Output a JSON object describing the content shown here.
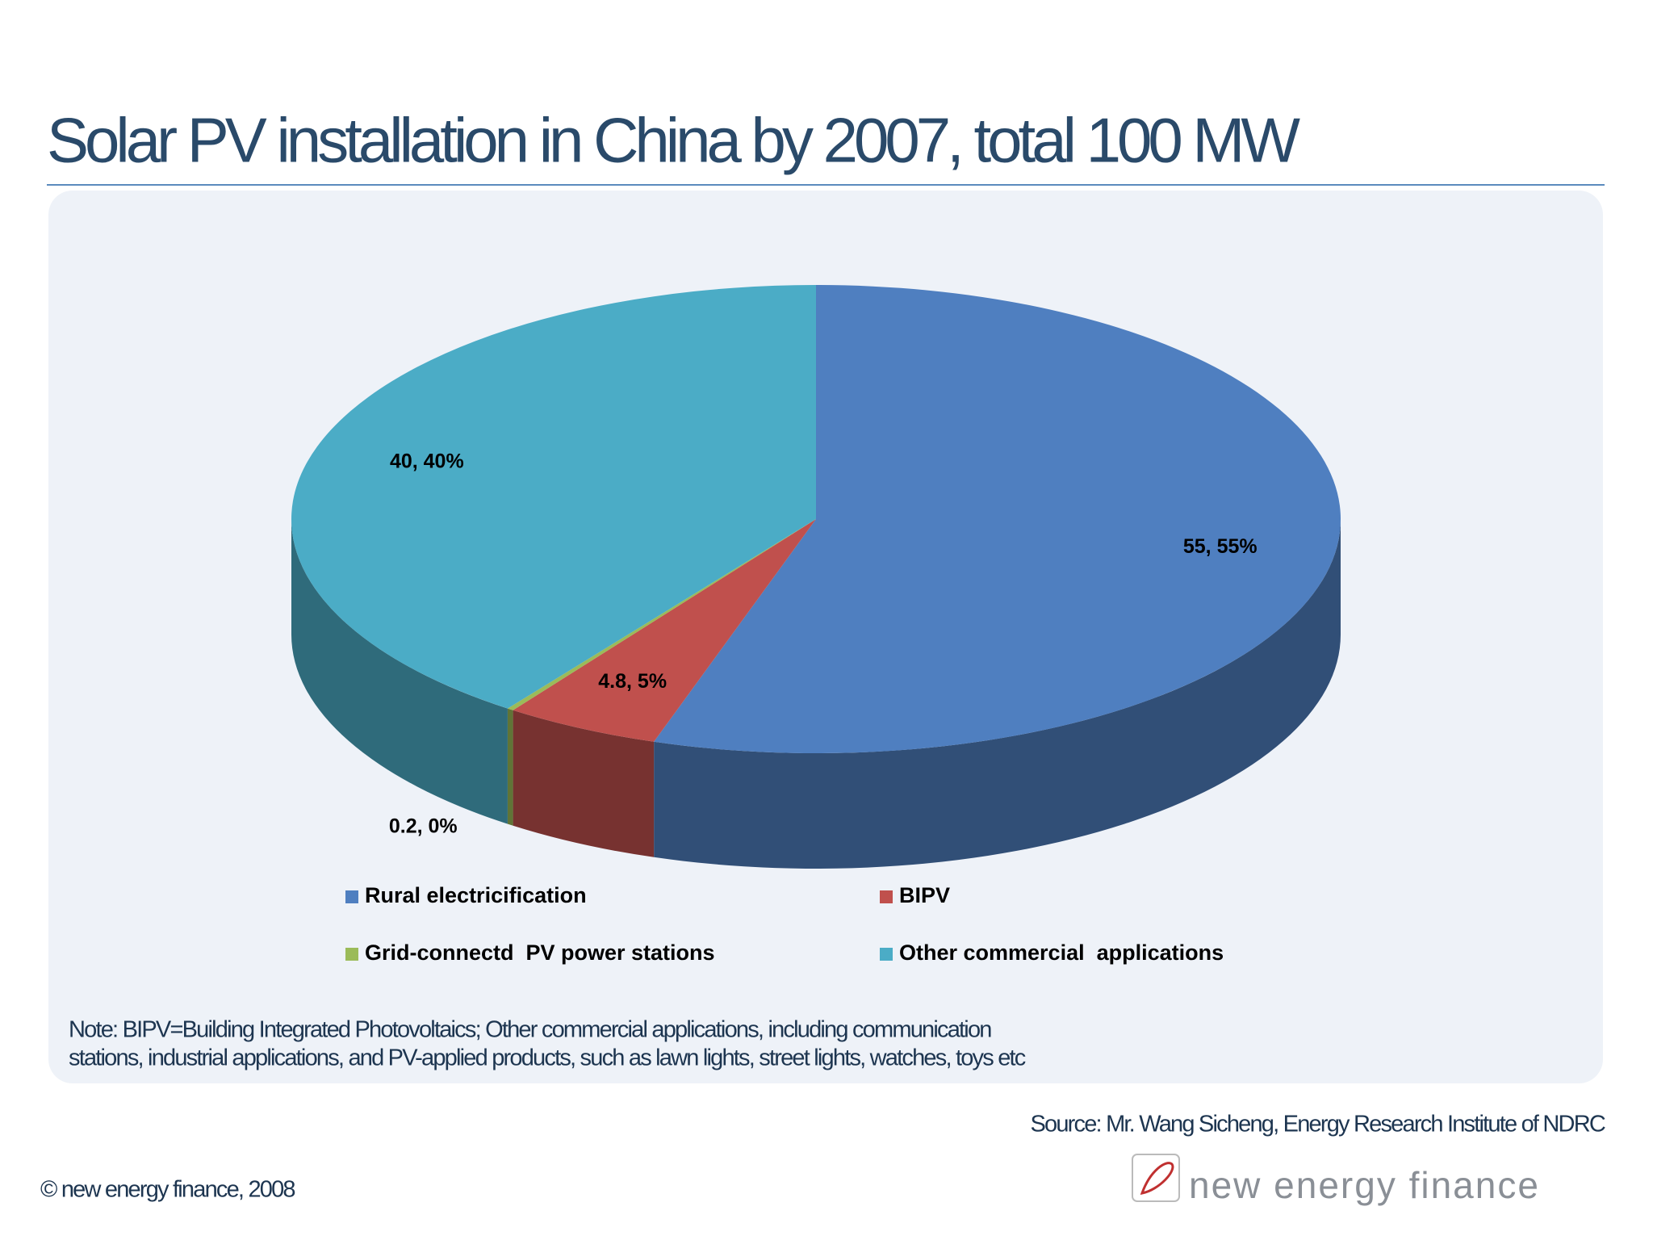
{
  "title": "Solar PV installation in China by 2007, total 100 MW",
  "chart_data": {
    "type": "pie",
    "categories": [
      "Rural electricification",
      "BIPV",
      "Grid-connectd  PV power stations",
      "Other commercial  applications"
    ],
    "values": [
      55,
      4.8,
      0.2,
      40
    ],
    "value_labels": [
      "55, 55%",
      "4.8, 5%",
      "0.2, 0%",
      "40, 40%"
    ],
    "colors": [
      "#4f7fc0",
      "#c0504d",
      "#9bbb59",
      "#4bacc6"
    ]
  },
  "note": [
    "Note: BIPV=Building Integrated Photovoltaics; Other commercial applications, including communication",
    "stations, industrial applications, and PV-applied products, such as lawn lights, street lights, watches, toys etc"
  ],
  "source": "Source: Mr. Wang Sicheng, Energy Research Institute of NDRC",
  "copyright": "© new energy finance, 2008",
  "logo": "new energy finance"
}
